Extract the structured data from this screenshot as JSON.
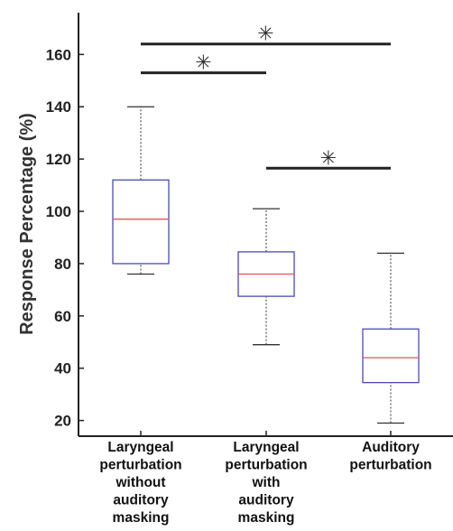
{
  "chart_data": {
    "type": "box",
    "title": "",
    "xlabel": "",
    "ylabel": "Response Percentage (%)",
    "ylim": [
      14,
      176
    ],
    "yticks": [
      20,
      40,
      60,
      80,
      100,
      120,
      140,
      160
    ],
    "grid": false,
    "categories": [
      [
        "Laryngeal",
        "perturbation",
        "without",
        "auditory",
        "masking"
      ],
      [
        "Laryngeal",
        "perturbation",
        "with",
        "auditory",
        "masking"
      ],
      [
        "Auditory",
        "perturbation"
      ]
    ],
    "boxes": [
      {
        "min": 76,
        "q1": 80,
        "median": 97,
        "q3": 112,
        "max": 140
      },
      {
        "min": 49,
        "q1": 67.5,
        "median": 76,
        "q3": 84.5,
        "max": 101
      },
      {
        "min": 19,
        "q1": 34.5,
        "median": 44,
        "q3": 55,
        "max": 84
      }
    ],
    "significance": [
      {
        "from": 0,
        "to": 2,
        "y": 164,
        "label": "✳"
      },
      {
        "from": 0,
        "to": 1,
        "y": 153,
        "label": "✳"
      },
      {
        "from": 1,
        "to": 2,
        "y": 116.5,
        "label": "✳"
      }
    ],
    "colors": {
      "box": "#4a4ab8",
      "median": "#e05555",
      "whisker": "#333333",
      "bracket": "#222222"
    }
  }
}
